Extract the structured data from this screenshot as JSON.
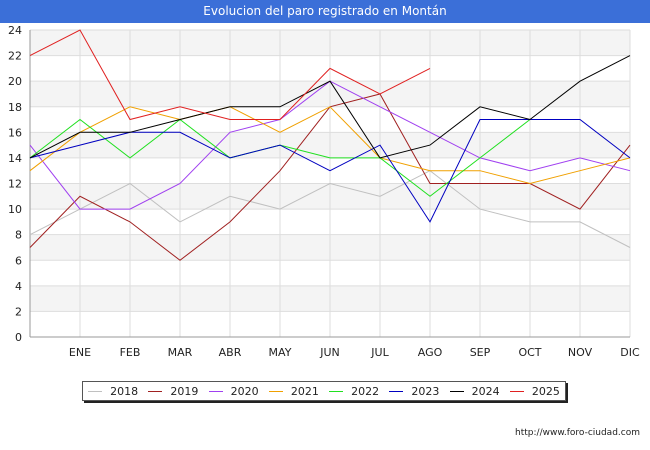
{
  "title": "Evolucion del paro registrado en Montán",
  "footer_url": "http://www.foro-ciudad.com",
  "chart_data": {
    "type": "line",
    "title": "Evolucion del paro registrado en Montán",
    "categories": [
      "",
      "ENE",
      "FEB",
      "MAR",
      "ABR",
      "MAY",
      "JUN",
      "JUL",
      "AGO",
      "SEP",
      "OCT",
      "NOV",
      "DIC"
    ],
    "ylim": [
      0,
      24
    ],
    "yticks": [
      0,
      2,
      4,
      6,
      8,
      10,
      12,
      14,
      16,
      18,
      20,
      22,
      24
    ],
    "grid": true,
    "legend_position": "bottom",
    "series": [
      {
        "name": "2018",
        "color": "#c0c0c0",
        "values": [
          8,
          10,
          12,
          9,
          11,
          10,
          12,
          11,
          13,
          10,
          9,
          9,
          7
        ]
      },
      {
        "name": "2019",
        "color": "#a02020",
        "values": [
          7,
          11,
          9,
          6,
          9,
          13,
          18,
          19,
          12,
          12,
          12,
          10,
          15
        ]
      },
      {
        "name": "2020",
        "color": "#a040f0",
        "values": [
          15,
          10,
          10,
          12,
          16,
          17,
          20,
          18,
          16,
          14,
          13,
          14,
          13
        ]
      },
      {
        "name": "2021",
        "color": "#f0a000",
        "values": [
          13,
          16,
          18,
          17,
          18,
          16,
          18,
          14,
          13,
          13,
          12,
          13,
          14
        ]
      },
      {
        "name": "2022",
        "color": "#20e020",
        "values": [
          14,
          17,
          14,
          17,
          14,
          15,
          14,
          14,
          11,
          14,
          17,
          null,
          null
        ]
      },
      {
        "name": "2023",
        "color": "#0000c0",
        "values": [
          14,
          15,
          16,
          16,
          14,
          15,
          13,
          15,
          9,
          17,
          17,
          17,
          14
        ]
      },
      {
        "name": "2024",
        "color": "#000000",
        "values": [
          14,
          16,
          16,
          17,
          18,
          18,
          20,
          14,
          15,
          18,
          17,
          20,
          22
        ]
      },
      {
        "name": "2025",
        "color": "#e02020",
        "values": [
          22,
          24,
          17,
          18,
          17,
          17,
          21,
          19,
          21,
          null,
          null,
          null,
          null
        ]
      }
    ]
  }
}
